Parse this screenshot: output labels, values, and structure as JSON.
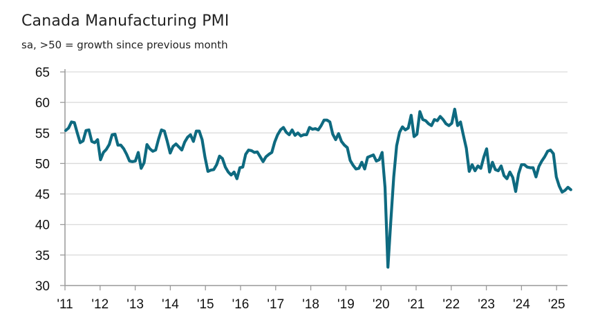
{
  "chart_data": {
    "type": "line",
    "title": "Canada Manufacturing PMI",
    "subtitle": "sa, >50 = growth since previous month",
    "xlabel": "",
    "ylabel": "",
    "ylim": [
      30,
      65
    ],
    "yticks": [
      30,
      35,
      40,
      45,
      50,
      55,
      60,
      65
    ],
    "ytick_labels": [
      "30",
      "35",
      "40",
      "45",
      "50",
      "55",
      "60",
      "65"
    ],
    "xticks": [
      "'11",
      "'12",
      "'13",
      "'14",
      "'15",
      "'16",
      "'17",
      "'18",
      "'19",
      "'20",
      "'21",
      "'22",
      "'23",
      "'24",
      "'25"
    ],
    "x_start": "2011-01",
    "x_frequency": "monthly",
    "grid": "horizontal",
    "line_color": "#0e6a80",
    "grid_color": "#d9d9d9",
    "axis_color": "#999999",
    "series": [
      {
        "name": "Canada Manufacturing PMI",
        "values": [
          55.4,
          55.8,
          56.8,
          56.7,
          55.0,
          53.4,
          53.7,
          55.4,
          55.5,
          53.6,
          53.4,
          53.9,
          50.6,
          51.8,
          52.3,
          53.1,
          54.7,
          54.8,
          53.0,
          53.0,
          52.4,
          51.5,
          50.4,
          50.3,
          50.4,
          51.8,
          49.2,
          50.1,
          53.1,
          52.4,
          52.0,
          52.2,
          54.0,
          55.5,
          55.3,
          53.6,
          51.7,
          52.8,
          53.2,
          52.7,
          52.2,
          53.5,
          54.3,
          54.7,
          53.6,
          55.3,
          55.3,
          53.9,
          51.0,
          48.7,
          48.9,
          49.0,
          49.8,
          51.2,
          50.8,
          49.4,
          48.6,
          48.1,
          48.6,
          47.5,
          49.3,
          49.4,
          51.5,
          52.2,
          52.1,
          51.8,
          51.9,
          51.1,
          50.3,
          51.1,
          51.5,
          51.8,
          53.5,
          54.7,
          55.5,
          55.9,
          55.1,
          54.7,
          55.5,
          54.6,
          55.0,
          54.5,
          54.7,
          54.7,
          55.9,
          55.6,
          55.7,
          55.5,
          56.2,
          57.1,
          57.1,
          56.8,
          54.8,
          53.9,
          54.9,
          53.6,
          53.0,
          52.6,
          50.5,
          49.7,
          49.1,
          49.2,
          50.2,
          49.1,
          51.0,
          51.2,
          51.4,
          50.4,
          50.6,
          51.8,
          46.1,
          33.0,
          40.6,
          47.8,
          52.9,
          55.1,
          56.0,
          55.5,
          55.8,
          57.9,
          54.4,
          54.8,
          58.5,
          57.2,
          57.0,
          56.5,
          56.2,
          57.2,
          57.0,
          57.7,
          57.2,
          56.5,
          56.2,
          56.6,
          58.9,
          56.2,
          56.8,
          54.6,
          52.5,
          48.7,
          49.8,
          48.8,
          49.6,
          49.2,
          51.0,
          52.4,
          48.6,
          50.2,
          49.0,
          48.8,
          49.6,
          48.0,
          47.5,
          48.6,
          47.7,
          45.4,
          48.3,
          49.8,
          49.8,
          49.4,
          49.3,
          49.3,
          47.8,
          49.5,
          50.4,
          51.1,
          52.0,
          52.2,
          51.6,
          47.8,
          46.3,
          45.3,
          45.6,
          46.1,
          45.7
        ]
      }
    ]
  }
}
